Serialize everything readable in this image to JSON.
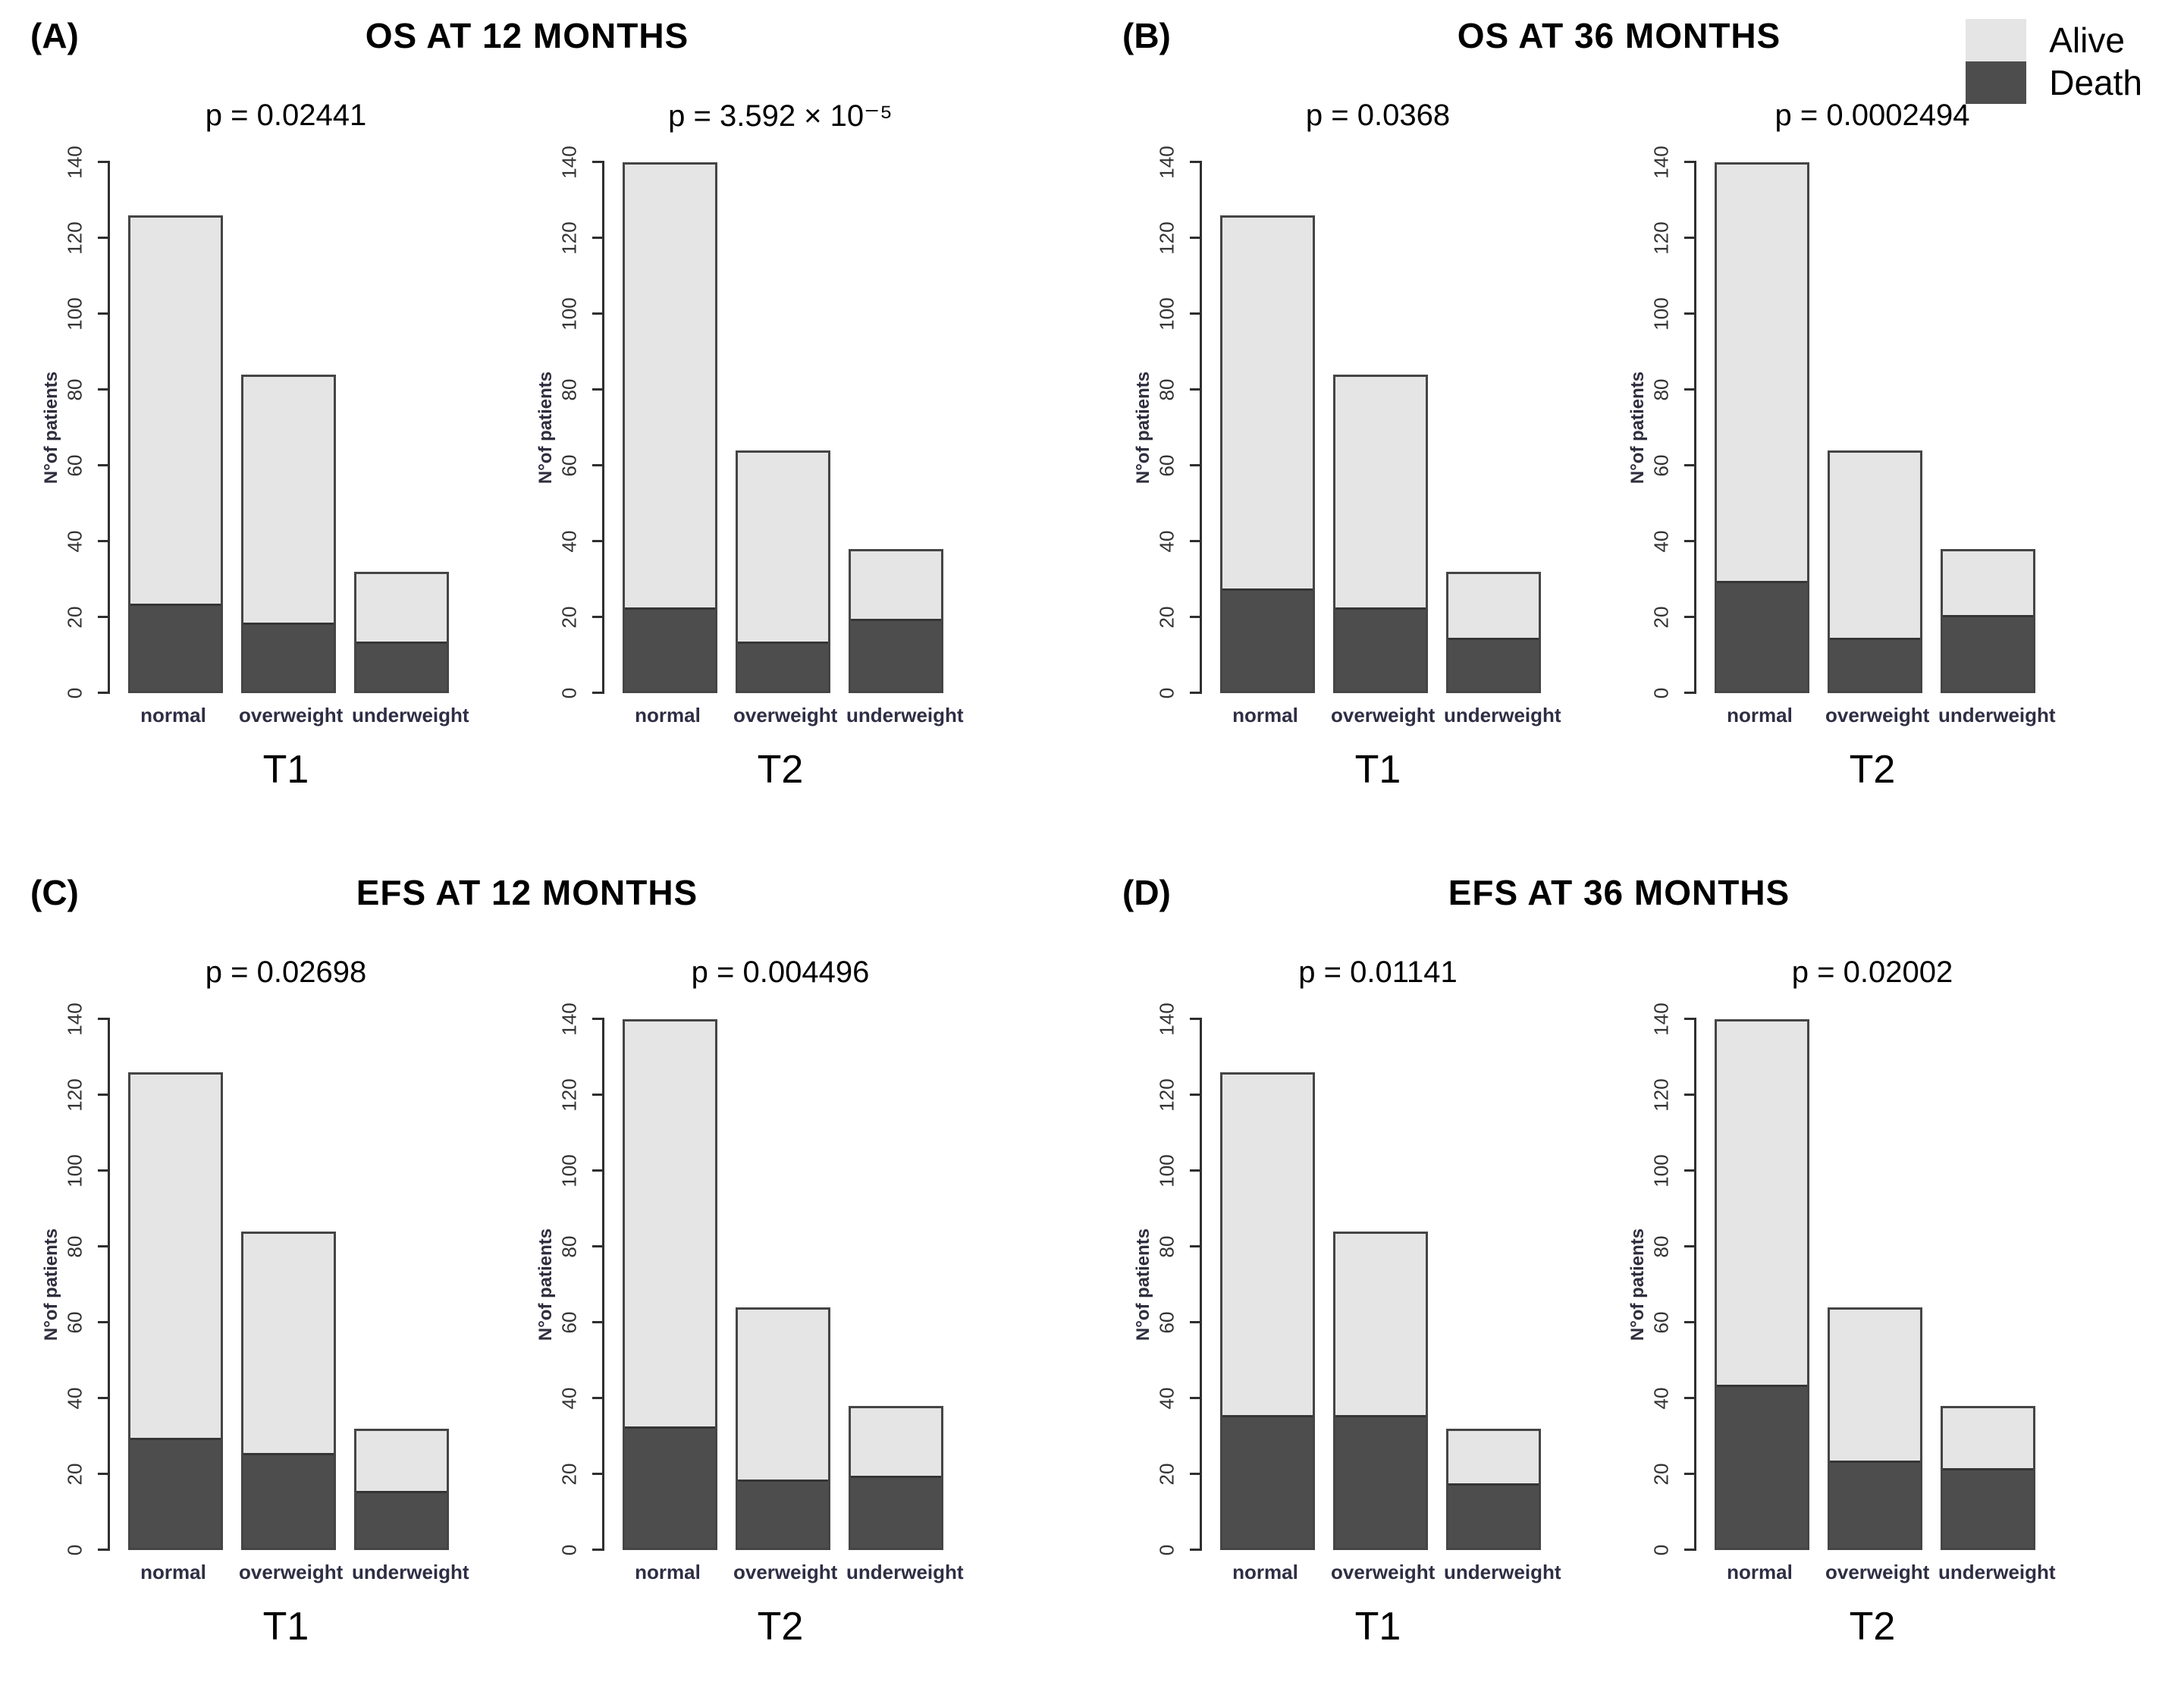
{
  "legend": {
    "items": [
      {
        "label": "Alive",
        "color": "#e5e5e5"
      },
      {
        "label": "Death",
        "color": "#4d4d4d"
      }
    ]
  },
  "colors": {
    "alive": "#e5e5e5",
    "death": "#4d4d4d",
    "bar_border": "#454545",
    "axis": "#2f2f2f"
  },
  "axis": {
    "ylabel": "N°of patients",
    "ylim": [
      0,
      140
    ],
    "yticks": [
      0,
      20,
      40,
      60,
      80,
      100,
      120,
      140
    ],
    "categories": [
      "normal",
      "overweight",
      "underweight"
    ]
  },
  "panels": [
    {
      "letter": "(A)",
      "title": "OS AT 12 MONTHS"
    },
    {
      "letter": "(B)",
      "title": "OS AT 36 MONTHS"
    },
    {
      "letter": "(C)",
      "title": "EFS AT 12 MONTHS"
    },
    {
      "letter": "(D)",
      "title": "EFS AT 36 MONTHS"
    }
  ],
  "chart_data": [
    {
      "type": "bar",
      "stacked": true,
      "panel": "(A)",
      "outcome": "OS AT 12 MONTHS",
      "group": "T1",
      "p_label": "p = 0.02441",
      "categories": [
        "normal",
        "overweight",
        "underweight"
      ],
      "totals": [
        126,
        84,
        32
      ],
      "series": [
        {
          "name": "Death",
          "values": [
            23,
            18,
            13
          ]
        },
        {
          "name": "Alive",
          "values": [
            103,
            66,
            19
          ]
        }
      ],
      "ylabel": "N°of patients",
      "ylim": [
        0,
        140
      ],
      "yticks": [
        0,
        20,
        40,
        60,
        80,
        100,
        120,
        140
      ]
    },
    {
      "type": "bar",
      "stacked": true,
      "panel": "(A)",
      "outcome": "OS AT 12 MONTHS",
      "group": "T2",
      "p_label": "p = 3.592 × 10⁻⁵",
      "categories": [
        "normal",
        "overweight",
        "underweight"
      ],
      "totals": [
        140,
        64,
        38
      ],
      "series": [
        {
          "name": "Death",
          "values": [
            22,
            13,
            19
          ]
        },
        {
          "name": "Alive",
          "values": [
            118,
            51,
            19
          ]
        }
      ],
      "ylabel": "N°of patients",
      "ylim": [
        0,
        140
      ],
      "yticks": [
        0,
        20,
        40,
        60,
        80,
        100,
        120,
        140
      ]
    },
    {
      "type": "bar",
      "stacked": true,
      "panel": "(B)",
      "outcome": "OS AT 36 MONTHS",
      "group": "T1",
      "p_label": "p = 0.0368",
      "categories": [
        "normal",
        "overweight",
        "underweight"
      ],
      "totals": [
        126,
        84,
        32
      ],
      "series": [
        {
          "name": "Death",
          "values": [
            27,
            22,
            14
          ]
        },
        {
          "name": "Alive",
          "values": [
            99,
            62,
            18
          ]
        }
      ],
      "ylabel": "N°of patients",
      "ylim": [
        0,
        140
      ],
      "yticks": [
        0,
        20,
        40,
        60,
        80,
        100,
        120,
        140
      ]
    },
    {
      "type": "bar",
      "stacked": true,
      "panel": "(B)",
      "outcome": "OS AT 36 MONTHS",
      "group": "T2",
      "p_label": "p = 0.0002494",
      "categories": [
        "normal",
        "overweight",
        "underweight"
      ],
      "totals": [
        140,
        64,
        38
      ],
      "series": [
        {
          "name": "Death",
          "values": [
            29,
            14,
            20
          ]
        },
        {
          "name": "Alive",
          "values": [
            111,
            50,
            18
          ]
        }
      ],
      "ylabel": "N°of patients",
      "ylim": [
        0,
        140
      ],
      "yticks": [
        0,
        20,
        40,
        60,
        80,
        100,
        120,
        140
      ]
    },
    {
      "type": "bar",
      "stacked": true,
      "panel": "(C)",
      "outcome": "EFS AT 12 MONTHS",
      "group": "T1",
      "p_label": "p = 0.02698",
      "categories": [
        "normal",
        "overweight",
        "underweight"
      ],
      "totals": [
        126,
        84,
        32
      ],
      "series": [
        {
          "name": "Death",
          "values": [
            29,
            25,
            15
          ]
        },
        {
          "name": "Alive",
          "values": [
            97,
            59,
            17
          ]
        }
      ],
      "ylabel": "N°of patients",
      "ylim": [
        0,
        140
      ],
      "yticks": [
        0,
        20,
        40,
        60,
        80,
        100,
        120,
        140
      ]
    },
    {
      "type": "bar",
      "stacked": true,
      "panel": "(C)",
      "outcome": "EFS AT 12 MONTHS",
      "group": "T2",
      "p_label": "p = 0.004496",
      "categories": [
        "normal",
        "overweight",
        "underweight"
      ],
      "totals": [
        140,
        64,
        38
      ],
      "series": [
        {
          "name": "Death",
          "values": [
            32,
            18,
            19
          ]
        },
        {
          "name": "Alive",
          "values": [
            108,
            46,
            19
          ]
        }
      ],
      "ylabel": "N°of patients",
      "ylim": [
        0,
        140
      ],
      "yticks": [
        0,
        20,
        40,
        60,
        80,
        100,
        120,
        140
      ]
    },
    {
      "type": "bar",
      "stacked": true,
      "panel": "(D)",
      "outcome": "EFS AT 36 MONTHS",
      "group": "T1",
      "p_label": "p = 0.01141",
      "categories": [
        "normal",
        "overweight",
        "underweight"
      ],
      "totals": [
        126,
        84,
        32
      ],
      "series": [
        {
          "name": "Death",
          "values": [
            35,
            35,
            17
          ]
        },
        {
          "name": "Alive",
          "values": [
            91,
            49,
            15
          ]
        }
      ],
      "ylabel": "N°of patients",
      "ylim": [
        0,
        140
      ],
      "yticks": [
        0,
        20,
        40,
        60,
        80,
        100,
        120,
        140
      ]
    },
    {
      "type": "bar",
      "stacked": true,
      "panel": "(D)",
      "outcome": "EFS AT 36 MONTHS",
      "group": "T2",
      "p_label": "p = 0.02002",
      "categories": [
        "normal",
        "overweight",
        "underweight"
      ],
      "totals": [
        140,
        64,
        38
      ],
      "series": [
        {
          "name": "Death",
          "values": [
            43,
            23,
            21
          ]
        },
        {
          "name": "Alive",
          "values": [
            97,
            41,
            17
          ]
        }
      ],
      "ylabel": "N°of patients",
      "ylim": [
        0,
        140
      ],
      "yticks": [
        0,
        20,
        40,
        60,
        80,
        100,
        120,
        140
      ]
    }
  ]
}
